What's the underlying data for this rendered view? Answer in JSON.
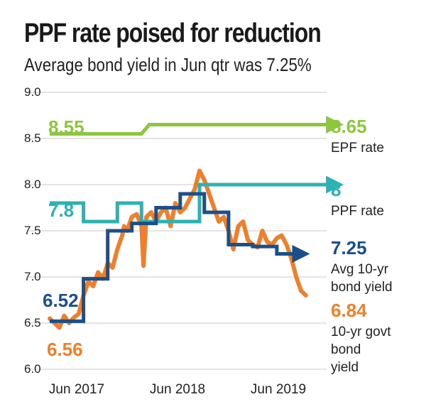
{
  "title": "PPF rate poised for reduction",
  "subtitle": "Average bond yield in Jun qtr was 7.25%",
  "colors": {
    "epf": "#8dc63f",
    "ppf": "#2bb3b3",
    "avg": "#1a4f8b",
    "bond": "#f07f2b",
    "grid": "#c8c8c8"
  },
  "chart_data": {
    "type": "line",
    "title": "PPF rate poised for reduction",
    "subtitle": "Average bond yield in Jun qtr was 7.25%",
    "ylim": [
      6.0,
      9.0
    ],
    "xlim": [
      2017.0,
      2019.7
    ],
    "yticks": [
      "9.0",
      "8.5",
      "8.0",
      "7.5",
      "7.0",
      "6.5",
      "6.0"
    ],
    "xticks": [
      {
        "label": "Jun 2017",
        "x": 2017.0
      },
      {
        "label": "Jun 2018",
        "x": 2018.0
      },
      {
        "label": "Jun 2019",
        "x": 2019.0
      }
    ],
    "grid": true,
    "series": [
      {
        "name": "EPF rate",
        "end_label": "8.65",
        "start_label": "8.55",
        "step": true,
        "x": [
          2016.75,
          2017.7,
          2017.78,
          2019.7
        ],
        "values": [
          8.55,
          8.55,
          8.65,
          8.65
        ]
      },
      {
        "name": "PPF rate",
        "end_label": "8",
        "start_label": "7.8",
        "step": true,
        "x": [
          2016.75,
          2017.1,
          2017.1,
          2017.45,
          2017.45,
          2017.7,
          2017.7,
          2018.3,
          2018.3,
          2019.7
        ],
        "values": [
          7.8,
          7.8,
          7.6,
          7.6,
          7.8,
          7.8,
          7.6,
          7.6,
          8.0,
          8.0
        ]
      },
      {
        "name": "Avg 10-yr bond yield",
        "name_line1": "Avg 10-yr",
        "name_line2": "bond yield",
        "end_label": "7.25",
        "start_label": "6.52",
        "step": true,
        "x": [
          2016.75,
          2017.1,
          2017.1,
          2017.35,
          2017.35,
          2017.6,
          2017.6,
          2017.85,
          2017.85,
          2018.1,
          2018.1,
          2018.35,
          2018.35,
          2018.6,
          2018.6,
          2018.85,
          2018.85,
          2019.1,
          2019.1,
          2019.35
        ],
        "values": [
          6.52,
          6.52,
          6.98,
          6.98,
          7.5,
          7.5,
          7.58,
          7.58,
          7.75,
          7.75,
          7.9,
          7.9,
          7.7,
          7.7,
          7.35,
          7.35,
          7.33,
          7.33,
          7.25,
          7.25
        ]
      },
      {
        "name": "10-yr govt bond yield",
        "name_line1": "10-yr govt",
        "name_line2": "bond",
        "name_line3": "yield",
        "end_label": "6.84",
        "start_label": "6.56",
        "x": [
          2016.75,
          2016.8,
          2016.85,
          2016.9,
          2016.95,
          2017.0,
          2017.05,
          2017.1,
          2017.15,
          2017.2,
          2017.25,
          2017.3,
          2017.35,
          2017.4,
          2017.45,
          2017.5,
          2017.52,
          2017.55,
          2017.6,
          2017.65,
          2017.7,
          2017.72,
          2017.75,
          2017.8,
          2017.85,
          2017.9,
          2017.95,
          2018.0,
          2018.05,
          2018.1,
          2018.15,
          2018.2,
          2018.25,
          2018.3,
          2018.35,
          2018.4,
          2018.45,
          2018.5,
          2018.55,
          2018.6,
          2018.65,
          2018.7,
          2018.75,
          2018.8,
          2018.85,
          2018.9,
          2018.95,
          2019.0,
          2019.05,
          2019.1,
          2019.15,
          2019.2,
          2019.25,
          2019.3,
          2019.35,
          2019.4
        ],
        "values": [
          6.55,
          6.5,
          6.45,
          6.58,
          6.5,
          6.56,
          6.6,
          6.8,
          6.95,
          6.9,
          7.05,
          6.98,
          7.15,
          7.1,
          7.3,
          7.45,
          7.55,
          7.5,
          7.65,
          7.68,
          7.55,
          7.12,
          7.65,
          7.7,
          7.6,
          7.7,
          7.75,
          7.55,
          7.8,
          7.7,
          7.75,
          7.85,
          7.95,
          8.15,
          8.05,
          7.9,
          7.75,
          7.6,
          7.65,
          7.5,
          7.3,
          7.55,
          7.6,
          7.4,
          7.35,
          7.32,
          7.5,
          7.38,
          7.35,
          7.42,
          7.45,
          7.35,
          7.2,
          7.0,
          6.85,
          6.8
        ]
      }
    ]
  }
}
